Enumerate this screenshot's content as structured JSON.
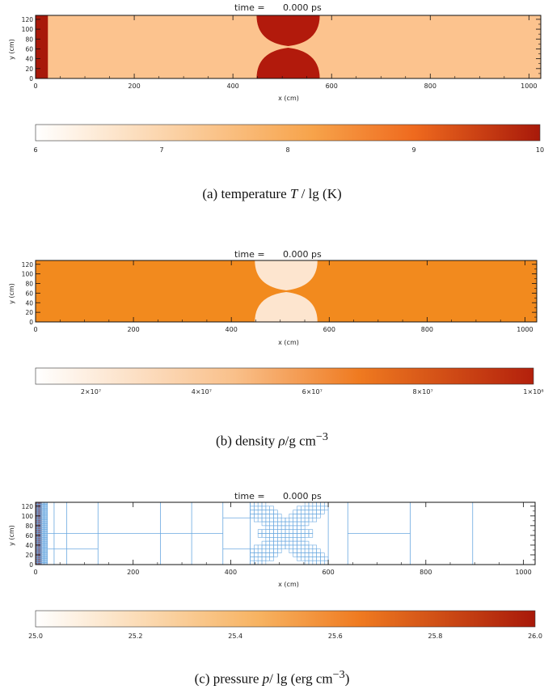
{
  "time_label": "time =",
  "time_value": "0.000 ps",
  "xlabel": "x (cm)",
  "ylabel": "y (cm)",
  "chart_data": [
    {
      "type": "heatmap",
      "panel": "(a)",
      "caption": "(a) temperature T / lg (K)",
      "xlim": [
        0,
        1024
      ],
      "ylim": [
        0,
        128
      ],
      "x_ticks": [
        0,
        200,
        400,
        600,
        800,
        1000
      ],
      "y_ticks": [
        0,
        20,
        40,
        60,
        80,
        100,
        120
      ],
      "background_color": "#fcc38e",
      "left_strip": {
        "x": [
          0,
          25
        ],
        "color": "#a8190a"
      },
      "blobs": {
        "color": "#b21a0c",
        "cx": 512,
        "half_width": 64
      },
      "colorbar": {
        "min": 6,
        "max": 10,
        "ticks": [
          "6",
          "7",
          "8",
          "9",
          "10"
        ],
        "tick_values": [
          6,
          7,
          8,
          9,
          10
        ]
      }
    },
    {
      "type": "heatmap",
      "panel": "(b)",
      "caption": "(b) density ρ/g cm−3",
      "xlim": [
        0,
        1024
      ],
      "ylim": [
        0,
        128
      ],
      "x_ticks": [
        0,
        200,
        400,
        600,
        800,
        1000
      ],
      "y_ticks": [
        0,
        20,
        40,
        60,
        80,
        100,
        120
      ],
      "background_color": "#f28a1e",
      "blobs": {
        "color": "#fde5cf",
        "cx": 512,
        "half_width": 64
      },
      "colorbar": {
        "min": 10000000.0,
        "max": 100000000.0,
        "ticks": [
          "2×10⁷",
          "4×10⁷",
          "6×10⁷",
          "8×10⁷",
          "1×10⁸"
        ],
        "tick_values": [
          20000000.0,
          40000000.0,
          60000000.0,
          80000000.0,
          100000000.0
        ]
      }
    },
    {
      "type": "heatmap",
      "panel": "(c)",
      "caption": "(c) pressure p/ lg (erg cm−3)",
      "xlim": [
        0,
        1024
      ],
      "ylim": [
        0,
        128
      ],
      "x_ticks": [
        0,
        200,
        400,
        600,
        800,
        1000
      ],
      "y_ticks": [
        0,
        20,
        40,
        60,
        80,
        100,
        120
      ],
      "background_color": "#ffffff",
      "left_strip": {
        "x": [
          0,
          12
        ],
        "color": "#a8190a"
      },
      "mesh_color": "#6aa8e0",
      "colorbar": {
        "min": 25.0,
        "max": 26.0,
        "ticks": [
          "25.0",
          "25.2",
          "25.4",
          "25.6",
          "25.8",
          "26.0"
        ],
        "tick_values": [
          25.0,
          25.2,
          25.4,
          25.6,
          25.8,
          26.0
        ]
      }
    }
  ]
}
